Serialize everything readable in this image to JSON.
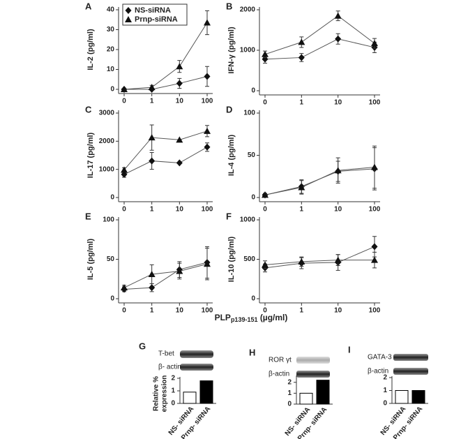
{
  "chart_data": [
    {
      "panel": "A",
      "type": "line",
      "y_label": "IL-2 (pg/ml)",
      "categories": [
        "0",
        "1",
        "10",
        "100"
      ],
      "ylim": [
        0,
        40
      ],
      "yticks": [
        0,
        10,
        20,
        30,
        40
      ],
      "legend": true,
      "series": [
        {
          "name": "NS-siRNA",
          "color": "#111",
          "marker": "diamond",
          "values": [
            0,
            0,
            3,
            6.5
          ],
          "errors": [
            0.5,
            0.5,
            2.5,
            5
          ]
        },
        {
          "name": "Prnp-siRNA",
          "color": "#111",
          "marker": "triangle",
          "values": [
            0,
            1,
            11.5,
            33.5
          ],
          "errors": [
            0.5,
            1,
            3,
            6
          ]
        }
      ]
    },
    {
      "panel": "B",
      "type": "line",
      "y_label": "IFN-γ (pg/ml)",
      "categories": [
        "0",
        "1",
        "10",
        "100"
      ],
      "ylim": [
        0,
        2000
      ],
      "yticks": [
        0,
        1000,
        2000
      ],
      "series": [
        {
          "color": "#111",
          "marker": "diamond",
          "values": [
            780,
            820,
            1280,
            1070
          ],
          "errors": [
            100,
            100,
            130,
            130
          ]
        },
        {
          "color": "#111",
          "marker": "triangle",
          "values": [
            900,
            1200,
            1850,
            1170
          ],
          "errors": [
            80,
            130,
            120,
            120
          ]
        }
      ]
    },
    {
      "panel": "C",
      "type": "line",
      "y_label": "IL-17 (pg/ml)",
      "categories": [
        "0",
        "1",
        "10",
        "100"
      ],
      "ylim": [
        0,
        3000
      ],
      "yticks": [
        0,
        1000,
        2000,
        3000
      ],
      "series": [
        {
          "color": "#111",
          "marker": "diamond",
          "values": [
            820,
            1300,
            1230,
            1790
          ],
          "errors": [
            100,
            300,
            0,
            150
          ]
        },
        {
          "color": "#111",
          "marker": "triangle",
          "values": [
            980,
            2130,
            2050,
            2360
          ],
          "errors": [
            80,
            450,
            0,
            200
          ]
        }
      ]
    },
    {
      "panel": "D",
      "type": "line",
      "y_label": "IL-4 (pg/ml)",
      "categories": [
        "0",
        "1",
        "10",
        "100"
      ],
      "ylim": [
        0,
        100
      ],
      "yticks": [
        0,
        50,
        100
      ],
      "series": [
        {
          "color": "#111",
          "marker": "diamond",
          "values": [
            3,
            13,
            31,
            34
          ],
          "errors": [
            2,
            8,
            12,
            25
          ]
        },
        {
          "color": "#111",
          "marker": "triangle",
          "values": [
            3,
            12,
            32,
            36
          ],
          "errors": [
            2,
            8,
            15,
            25
          ]
        }
      ]
    },
    {
      "panel": "E",
      "type": "line",
      "y_label": "IL-5 (pg/ml)",
      "categories": [
        "0",
        "1",
        "10",
        "100"
      ],
      "ylim": [
        0,
        100
      ],
      "yticks": [
        0,
        50,
        100
      ],
      "series": [
        {
          "color": "#111",
          "marker": "diamond",
          "values": [
            12,
            14,
            37,
            46
          ],
          "errors": [
            3,
            5,
            10,
            20
          ]
        },
        {
          "color": "#111",
          "marker": "triangle",
          "values": [
            14,
            31,
            35,
            44
          ],
          "errors": [
            3,
            12,
            10,
            20
          ]
        }
      ]
    },
    {
      "panel": "F",
      "type": "line",
      "y_label": "IL-10 (pg/ml)",
      "categories": [
        "0",
        "1",
        "10",
        "100"
      ],
      "ylim": [
        0,
        1000
      ],
      "yticks": [
        0,
        500,
        1000
      ],
      "series": [
        {
          "color": "#111",
          "marker": "diamond",
          "values": [
            390,
            450,
            460,
            660
          ],
          "errors": [
            50,
            70,
            100,
            130
          ]
        },
        {
          "color": "#111",
          "marker": "triangle",
          "values": [
            430,
            470,
            490,
            490
          ],
          "errors": [
            50,
            60,
            70,
            100
          ]
        }
      ]
    },
    {
      "panel": "G",
      "type": "bar",
      "y_label": [
        "Relative %",
        "expression"
      ],
      "blot_labels": [
        "T-bet",
        "β- actin"
      ],
      "categories": [
        "NS- siRNA",
        "Prnp- siRNA"
      ],
      "values": [
        0.9,
        1.8
      ],
      "colors": [
        "#ffffff",
        "#000000"
      ],
      "ylim": [
        0,
        2
      ],
      "yticks": [
        0,
        1,
        2
      ]
    },
    {
      "panel": "H",
      "type": "bar",
      "blot_labels": [
        "ROR γt",
        "β-actin"
      ],
      "categories": [
        "NS- siRNA",
        "Prnp- siRNA"
      ],
      "values": [
        1,
        2.2
      ],
      "colors": [
        "#ffffff",
        "#000000"
      ],
      "ylim": [
        0,
        2.5
      ],
      "yticks": [
        0,
        1,
        2
      ]
    },
    {
      "panel": "I",
      "type": "bar",
      "blot_labels": [
        "GATA-3",
        "β-actin"
      ],
      "categories": [
        "NS- siRNA",
        "Prnp- siRNA"
      ],
      "values": [
        1,
        1
      ],
      "colors": [
        "#ffffff",
        "#000000"
      ],
      "ylim": [
        0,
        2
      ],
      "yticks": [
        0,
        1,
        2
      ]
    }
  ],
  "x_label": {
    "text": "PLP",
    "sub": "p139-151",
    "unit": "(µg/ml)"
  }
}
